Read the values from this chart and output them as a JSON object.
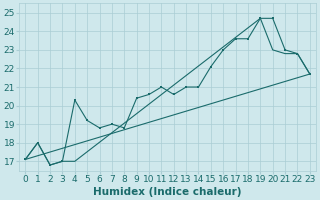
{
  "title": "",
  "xlabel": "Humidex (Indice chaleur)",
  "xlim": [
    -0.5,
    23.5
  ],
  "ylim": [
    16.5,
    25.5
  ],
  "xticks": [
    0,
    1,
    2,
    3,
    4,
    5,
    6,
    7,
    8,
    9,
    10,
    11,
    12,
    13,
    14,
    15,
    16,
    17,
    18,
    19,
    20,
    21,
    22,
    23
  ],
  "yticks": [
    17,
    18,
    19,
    20,
    21,
    22,
    23,
    24,
    25
  ],
  "bg_color": "#cfe8ec",
  "grid_color": "#aacdd4",
  "line_color": "#1a6b6b",
  "line1_x": [
    0,
    1,
    2,
    3,
    4,
    5,
    6,
    7,
    8,
    9,
    10,
    11,
    12,
    13,
    14,
    15,
    16,
    17,
    18,
    19,
    20,
    21,
    22,
    23
  ],
  "line1_y": [
    17.1,
    18.0,
    16.8,
    17.0,
    20.3,
    19.2,
    18.8,
    19.0,
    18.8,
    20.4,
    20.6,
    21.0,
    20.6,
    21.0,
    21.0,
    22.1,
    23.0,
    23.6,
    23.6,
    24.7,
    24.7,
    23.0,
    22.8,
    21.7
  ],
  "line2_x": [
    0,
    23
  ],
  "line2_y": [
    17.1,
    21.7
  ],
  "line3_x": [
    0,
    1,
    2,
    3,
    4,
    19,
    20,
    21,
    22,
    23
  ],
  "line3_y": [
    17.1,
    18.0,
    16.8,
    17.0,
    17.0,
    24.7,
    23.0,
    22.8,
    22.8,
    21.7
  ],
  "tick_fontsize": 6.5,
  "xlabel_fontsize": 7.5
}
